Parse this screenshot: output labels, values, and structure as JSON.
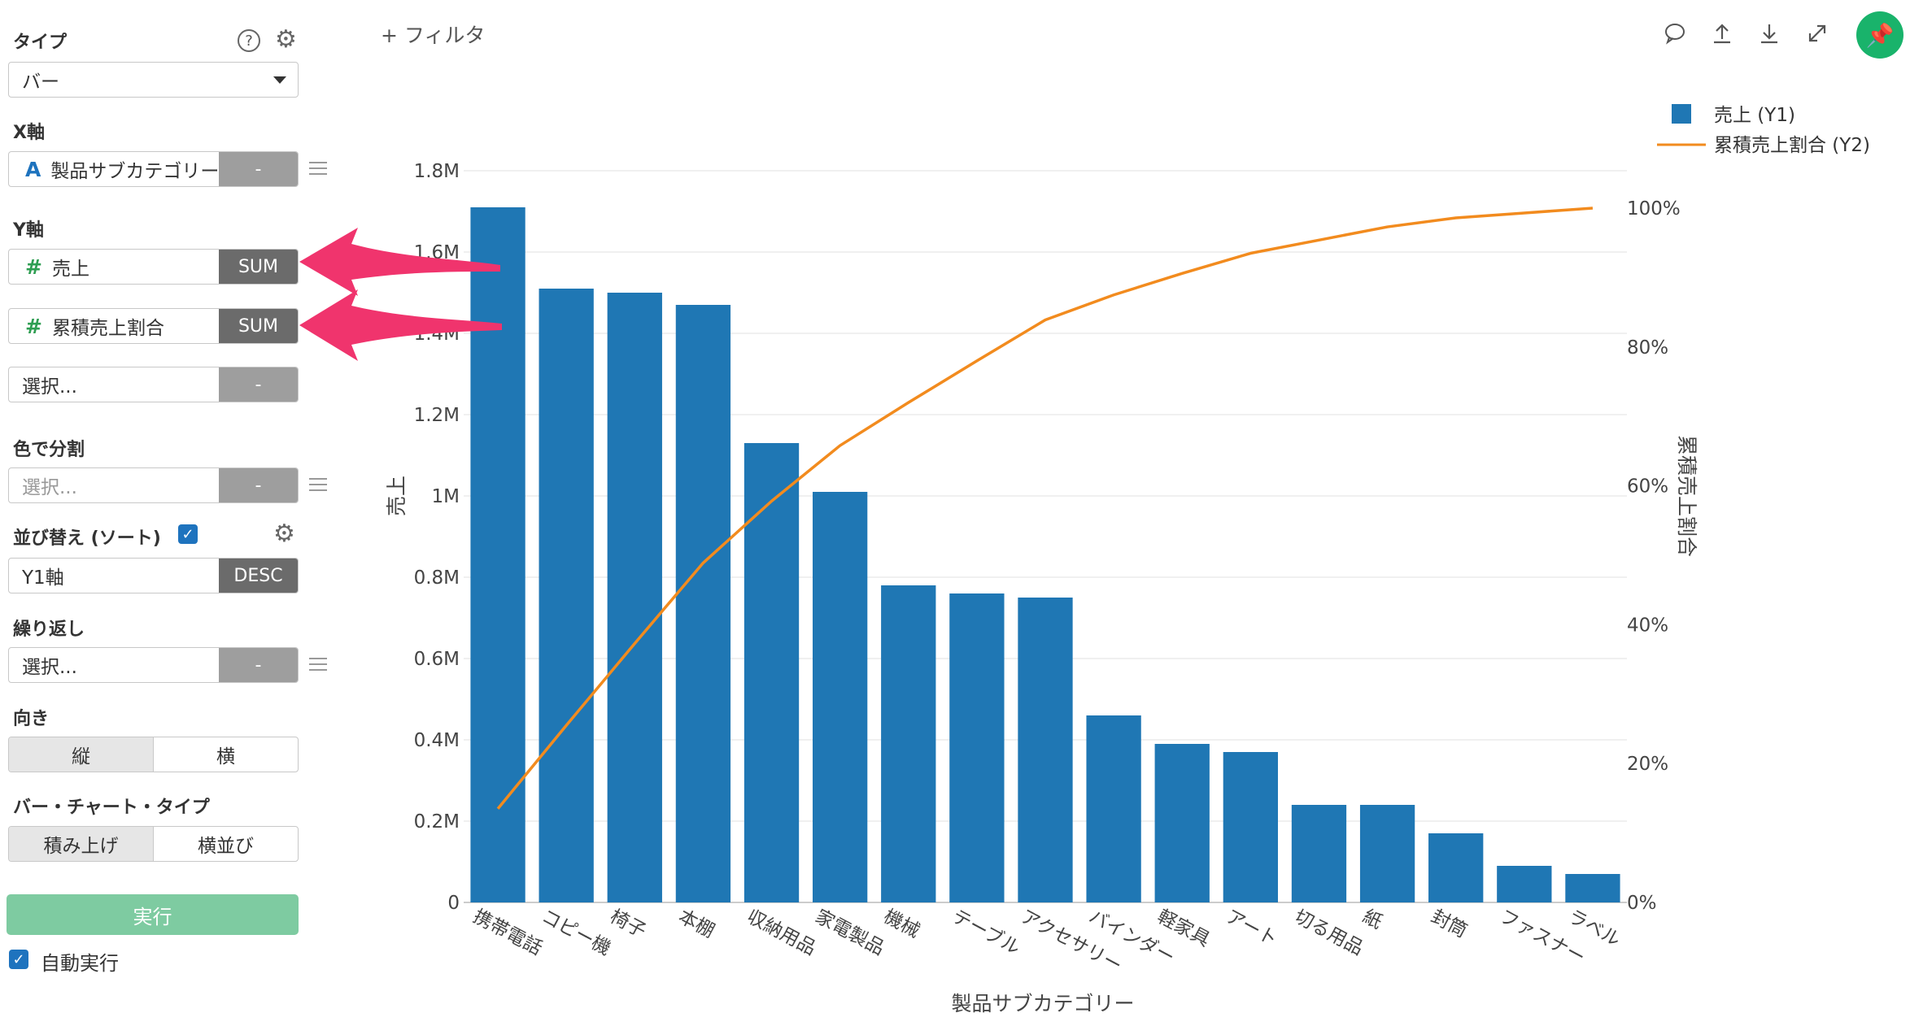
{
  "panel": {
    "type_label": "タイプ",
    "type_value": "バー",
    "x_axis_label": "X軸",
    "x_field": "製品サブカテゴリー",
    "x_tag": "-",
    "y_axis_label": "Y軸",
    "y_fields": [
      {
        "name": "売上",
        "agg": "SUM"
      },
      {
        "name": "累積売上割合",
        "agg": "SUM"
      }
    ],
    "y_select_placeholder": "選択...",
    "y_select_tag": "-",
    "color_label": "色で分割",
    "color_placeholder": "選択...",
    "color_tag": "-",
    "sort_label": "並び替え (ソート)",
    "sort_field": "Y1軸",
    "sort_order": "DESC",
    "repeat_label": "繰り返し",
    "repeat_placeholder": "選択...",
    "repeat_tag": "-",
    "orientation_label": "向き",
    "orientation_options": [
      "縦",
      "横"
    ],
    "bar_type_label": "バー・チャート・タイプ",
    "bar_type_options": [
      "積み上げ",
      "横並び"
    ],
    "run_label": "実行",
    "auto_run_label": "自動実行"
  },
  "toolbar": {
    "filter_label": "+ フィルタ"
  },
  "colors": {
    "bar": "#1f77b4",
    "line": "#f28b1e",
    "annotation_arrow": "#f0346d",
    "run_button": "#7ecba1",
    "pin_button": "#19b36b"
  },
  "chart_data": {
    "type": "bar",
    "categories": [
      "携帯電話",
      "コピー機",
      "椅子",
      "本棚",
      "収納用品",
      "家電製品",
      "機械",
      "テーブル",
      "アクセサリー",
      "バインダー",
      "軽家具",
      "アート",
      "切る用品",
      "紙",
      "封筒",
      "ファスナー",
      "ラベル"
    ],
    "series": [
      {
        "name": "売上 (Y1)",
        "type": "bar",
        "axis": "y1",
        "values": [
          1710000,
          1510000,
          1500000,
          1470000,
          1130000,
          1010000,
          780000,
          760000,
          750000,
          460000,
          390000,
          370000,
          240000,
          240000,
          170000,
          90000,
          70000
        ]
      },
      {
        "name": "累積売上割合 (Y2)",
        "type": "line",
        "axis": "y2",
        "values": [
          13.5,
          25.5,
          37.3,
          48.9,
          57.8,
          65.8,
          72.0,
          78.0,
          83.9,
          87.5,
          90.6,
          93.5,
          95.4,
          97.3,
          98.6,
          99.3,
          100
        ]
      }
    ],
    "xlabel": "製品サブカテゴリー",
    "ylabel": "売上",
    "y2label": "累積売上割合",
    "ylim": [
      0,
      1800000
    ],
    "y2lim": [
      0,
      100
    ],
    "y_ticks": [
      "0",
      "0.2M",
      "0.4M",
      "0.6M",
      "0.8M",
      "1M",
      "1.2M",
      "1.4M",
      "1.6M",
      "1.8M"
    ],
    "y2_ticks": [
      "0%",
      "20%",
      "40%",
      "60%",
      "80%",
      "100%"
    ],
    "grid": true,
    "legend_position": "top-right"
  }
}
